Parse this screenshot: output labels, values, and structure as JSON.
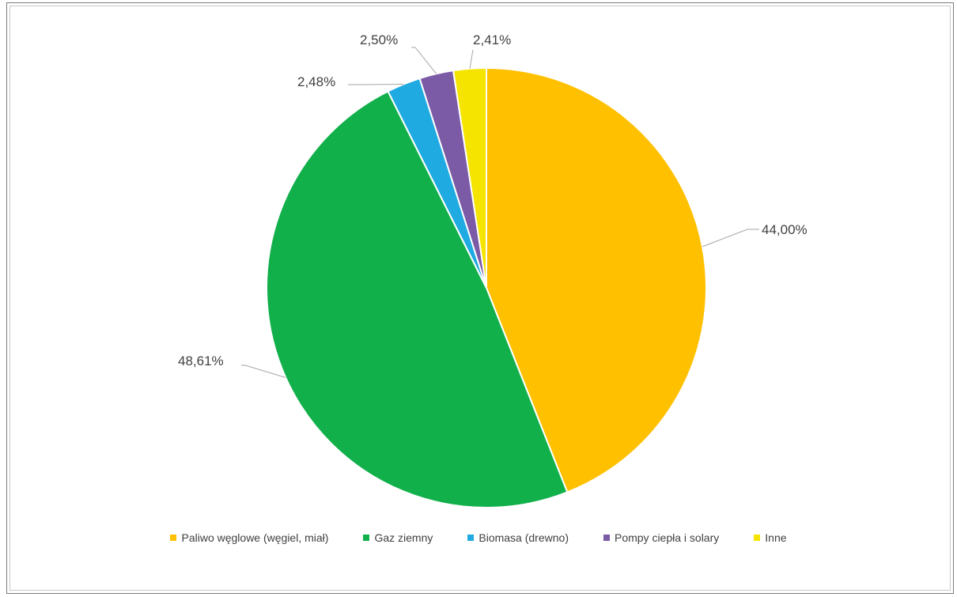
{
  "chart_data": {
    "type": "pie",
    "title": "",
    "slices": [
      {
        "label": "Paliwo węglowe (węgiel, miał)",
        "value": 44.0,
        "display": "44,00%",
        "color": "#FFC000"
      },
      {
        "label": "Gaz ziemny",
        "value": 48.61,
        "display": "48,61%",
        "color": "#12B04B"
      },
      {
        "label": "Biomasa (drewno)",
        "value": 2.48,
        "display": "2,48%",
        "color": "#1FAAE1"
      },
      {
        "label": "Pompy ciepła i solary",
        "value": 2.5,
        "display": "2,50%",
        "color": "#7B5AA6"
      },
      {
        "label": "Inne",
        "value": 2.41,
        "display": "2,41%",
        "color": "#F5E400"
      }
    ],
    "start_angle": "12 o'clock",
    "direction": "clockwise",
    "data_labels": "outside with leader lines",
    "legend_position": "bottom"
  }
}
